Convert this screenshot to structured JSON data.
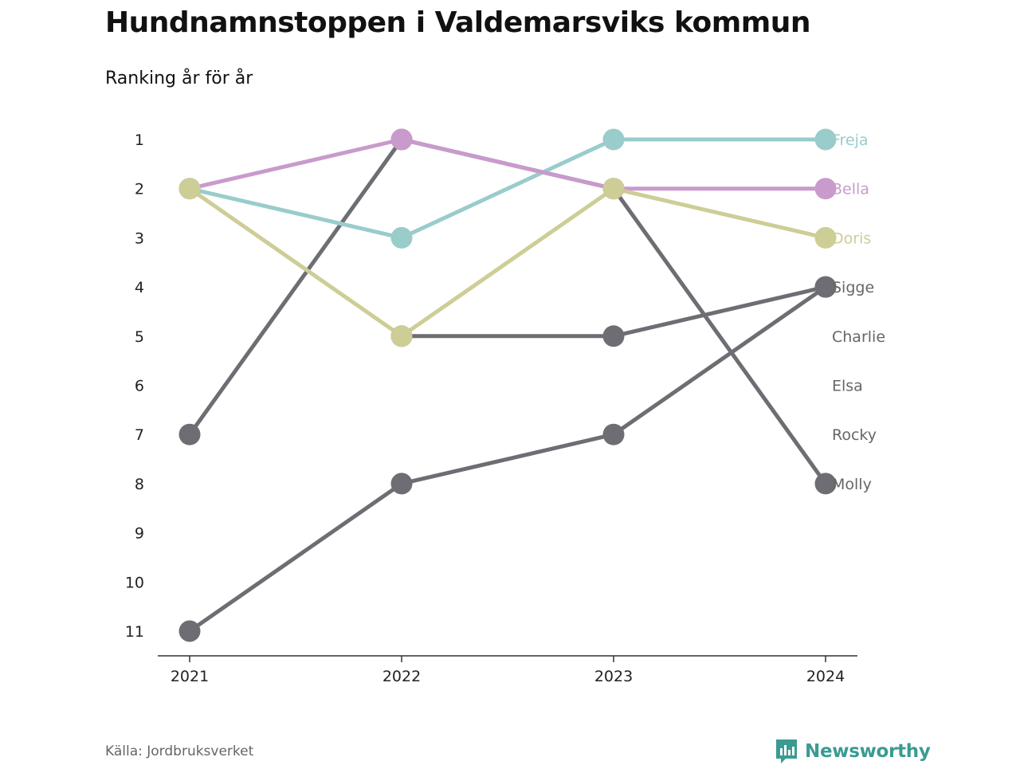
{
  "title": "Hundnamnstoppen i Valdemarsviks kommun",
  "subtitle": "Ranking år för år",
  "source": "Källa: Jordbruksverket",
  "brand": "Newsworthy",
  "colors": {
    "Freja": "#99cccb",
    "Bella": "#c99acc",
    "Doris": "#cdcd96",
    "other": "#6e6d73",
    "axis": "#333333",
    "label": "#666666",
    "brand": "#3a9b92"
  },
  "chart_data": {
    "type": "line",
    "x": [
      "2021",
      "2022",
      "2023",
      "2024"
    ],
    "y_ticks": [
      1,
      2,
      3,
      4,
      5,
      6,
      7,
      8,
      9,
      10,
      11
    ],
    "ylim": [
      11,
      1
    ],
    "y_reversed": true,
    "grid": false,
    "series": [
      {
        "name": "Freja",
        "values": [
          2,
          3,
          1,
          1
        ]
      },
      {
        "name": "Bella",
        "values": [
          2,
          1,
          2,
          2
        ]
      },
      {
        "name": "Doris",
        "values": [
          2,
          5,
          2,
          3
        ]
      },
      {
        "name": "Sigge",
        "values": [
          11,
          8,
          7,
          4
        ]
      },
      {
        "name": "Charlie",
        "values": [
          null,
          5,
          5,
          4
        ]
      },
      {
        "name": "Elsa",
        "values": [
          null,
          null,
          null,
          null
        ]
      },
      {
        "name": "Rocky",
        "values": [
          null,
          null,
          null,
          null
        ]
      },
      {
        "name": "Molly",
        "values": [
          7,
          1,
          2,
          8
        ]
      }
    ],
    "end_labels": [
      {
        "name": "Freja",
        "rank": 1
      },
      {
        "name": "Bella",
        "rank": 2
      },
      {
        "name": "Doris",
        "rank": 3
      },
      {
        "name": "Sigge",
        "rank": 4
      },
      {
        "name": "Charlie",
        "rank": 5
      },
      {
        "name": "Elsa",
        "rank": 6
      },
      {
        "name": "Rocky",
        "rank": 7
      },
      {
        "name": "Molly",
        "rank": 8
      }
    ]
  }
}
